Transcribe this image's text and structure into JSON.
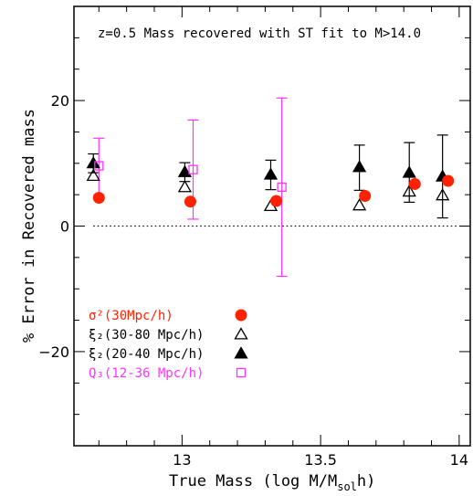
{
  "chart_data": {
    "type": "scatter",
    "title": "z=0.5 Mass recovered with ST fit to M>14.0",
    "xlabel": "True Mass (log M/M",
    "xlabel_sub": "sol",
    "xlabel_end": "h)",
    "ylabel": "% Error in Recovered mass",
    "xlim": [
      12.61,
      14.04
    ],
    "ylim": [
      -35,
      35
    ],
    "x_tick_labels": [
      "13",
      "13.5",
      "14"
    ],
    "x_tick_values": [
      13,
      13.5,
      14
    ],
    "y_tick_labels": [
      "20",
      "0",
      "−20"
    ],
    "y_tick_values": [
      20,
      0,
      -20
    ],
    "zero_line": "dotted",
    "legend_position": "bottom-left",
    "series": [
      {
        "name": "σ²(30Mpc/h)",
        "marker": "filled-circle",
        "color": "#ff2200",
        "points": [
          {
            "x": 12.7,
            "y": 4.5
          },
          {
            "x": 13.03,
            "y": 3.9
          },
          {
            "x": 13.34,
            "y": 4.0
          },
          {
            "x": 13.66,
            "y": 4.8
          },
          {
            "x": 13.84,
            "y": 6.7
          },
          {
            "x": 13.96,
            "y": 7.2
          }
        ]
      },
      {
        "name": "ξ₂(30-80 Mpc/h)",
        "marker": "open-triangle",
        "color": "#000000",
        "points": [
          {
            "x": 12.68,
            "y": 8.0
          },
          {
            "x": 13.01,
            "y": 6.2
          },
          {
            "x": 13.32,
            "y": 3.2
          },
          {
            "x": 13.64,
            "y": 3.3
          },
          {
            "x": 13.82,
            "y": 5.5
          },
          {
            "x": 13.94,
            "y": 4.9
          }
        ]
      },
      {
        "name": "ξ₂(20-40 Mpc/h)",
        "marker": "filled-triangle",
        "color": "#000000",
        "points": [
          {
            "x": 12.68,
            "y": 10.0,
            "err_hi": 11.5,
            "err_lo": 8.5
          },
          {
            "x": 13.01,
            "y": 8.6,
            "err_hi": 10.1,
            "err_lo": 7.1
          },
          {
            "x": 13.32,
            "y": 8.2,
            "err_hi": 10.5,
            "err_lo": 5.8
          },
          {
            "x": 13.64,
            "y": 9.4,
            "err_hi": 12.9,
            "err_lo": 5.7
          },
          {
            "x": 13.82,
            "y": 8.5,
            "err_hi": 13.3,
            "err_lo": 3.8
          },
          {
            "x": 13.94,
            "y": 7.9,
            "err_hi": 14.5,
            "err_lo": 1.3
          }
        ]
      },
      {
        "name": "Q₃(12-36 Mpc/h)",
        "marker": "open-square",
        "color": "#ff33ff",
        "points": [
          {
            "x": 12.7,
            "y": 9.6,
            "err_hi": 14.0,
            "err_lo": 5.0
          },
          {
            "x": 13.04,
            "y": 9.0,
            "err_hi": 16.9,
            "err_lo": 1.1
          },
          {
            "x": 13.36,
            "y": 6.2,
            "err_hi": 20.4,
            "err_lo": -8.0
          }
        ]
      }
    ]
  }
}
